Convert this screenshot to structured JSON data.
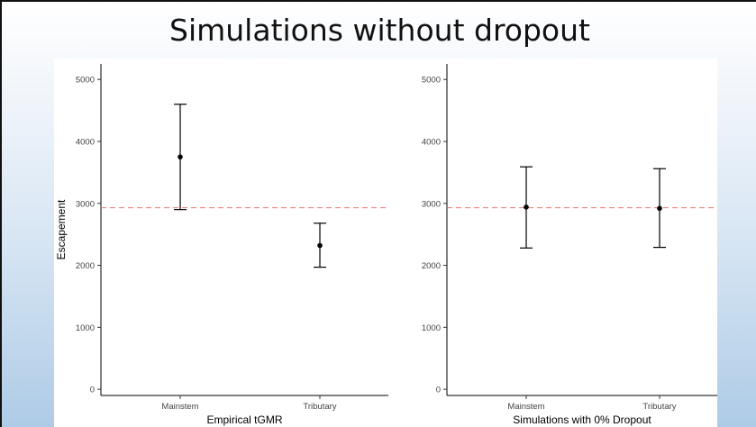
{
  "slide": {
    "title": "Simulations without dropout"
  },
  "chart_data": [
    {
      "type": "scatter",
      "title": "",
      "xlabel": "Empirical tGMR",
      "ylabel": "Escapement",
      "categories": [
        "Mainstem",
        "Tributary"
      ],
      "y_ticks": [
        0,
        1000,
        2000,
        3000,
        4000,
        5000
      ],
      "ylim": [
        -100,
        5250
      ],
      "series": [
        {
          "values": [
            3750,
            2320
          ],
          "error_low": [
            2900,
            1970
          ],
          "error_high": [
            4600,
            2680
          ]
        }
      ],
      "reference_line": {
        "value": 2930,
        "style": "dashed",
        "color": "#e87a6f"
      },
      "grid": false,
      "point_color": "#000000"
    },
    {
      "type": "scatter",
      "title": "",
      "xlabel": "Simulations with 0% Dropout",
      "ylabel": "",
      "categories": [
        "Mainstem",
        "Tributary"
      ],
      "y_ticks": [
        0,
        1000,
        2000,
        3000,
        4000,
        5000
      ],
      "ylim": [
        -100,
        5250
      ],
      "series": [
        {
          "values": [
            2940,
            2920
          ],
          "error_low": [
            2280,
            2290
          ],
          "error_high": [
            3590,
            3560
          ]
        }
      ],
      "reference_line": {
        "value": 2930,
        "style": "dashed",
        "color": "#e87a6f"
      },
      "grid": false,
      "point_color": "#000000"
    }
  ]
}
